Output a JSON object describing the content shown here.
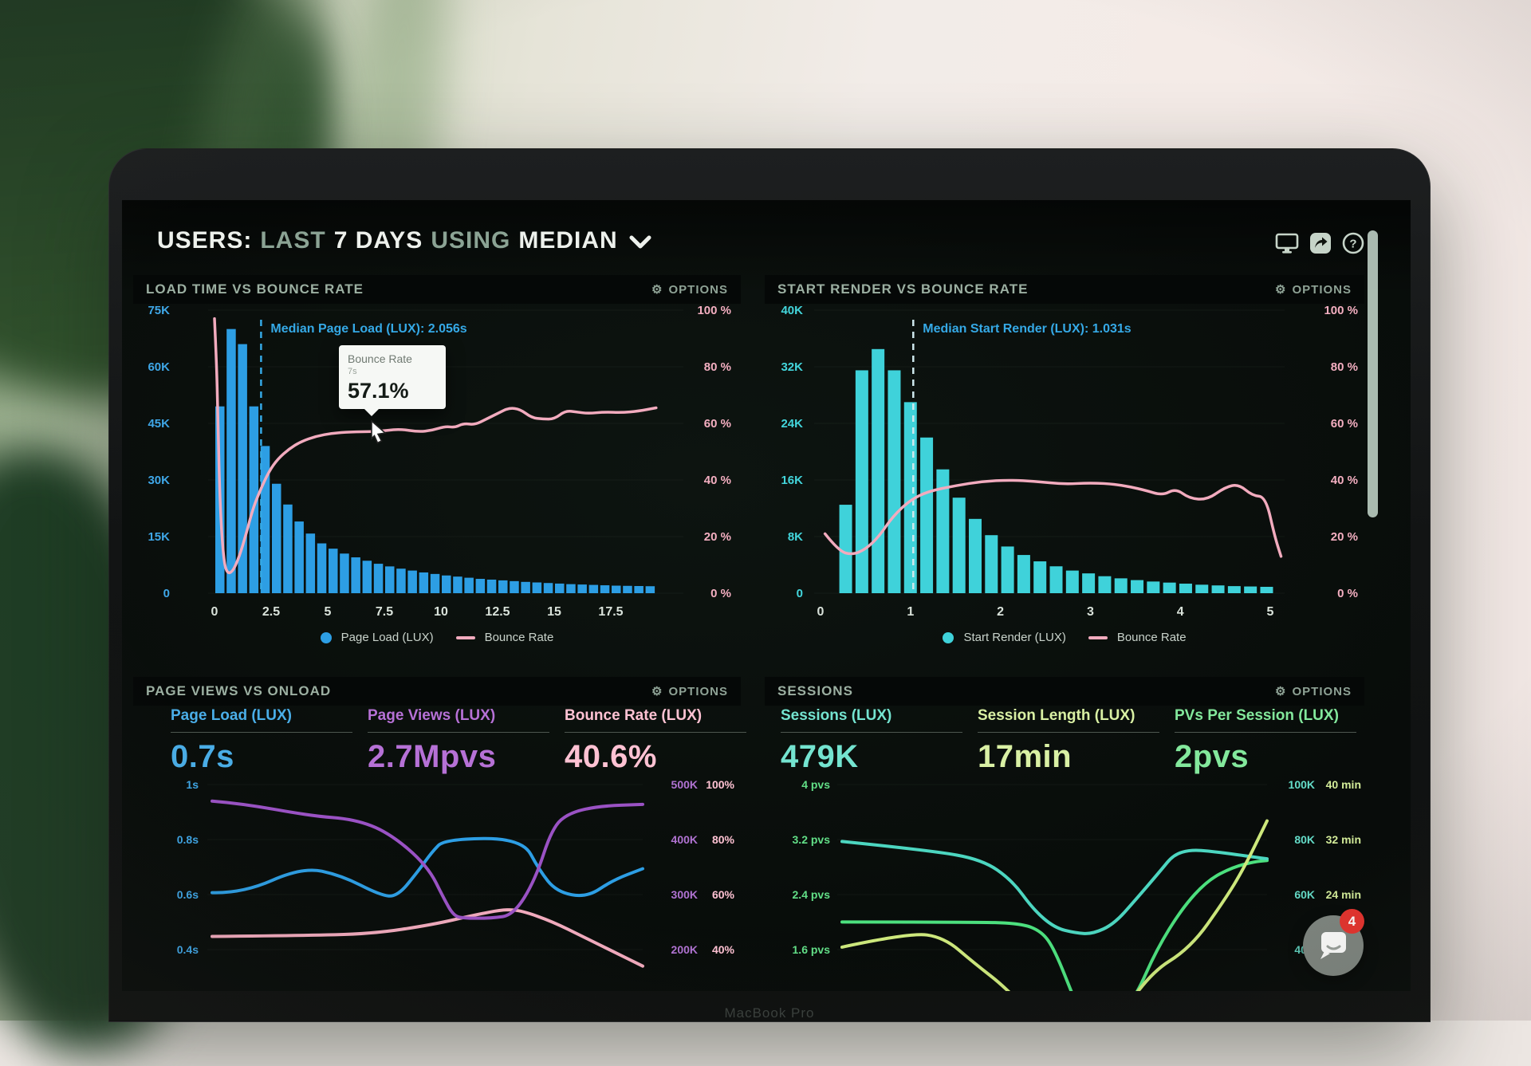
{
  "header": {
    "title_parts": [
      {
        "text": "USERS:",
        "tone": "bright"
      },
      {
        "text": "LAST",
        "tone": "sage"
      },
      {
        "text": "7 DAYS",
        "tone": "bright"
      },
      {
        "text": "USING",
        "tone": "sage"
      },
      {
        "text": "MEDIAN",
        "tone": "bright"
      }
    ],
    "icons": [
      "monitor-icon",
      "share-icon",
      "help-icon"
    ]
  },
  "window": {
    "brand_label": "MacBook Pro"
  },
  "chat": {
    "badge_count": "4"
  },
  "tooltip": {
    "title": "Bounce Rate",
    "sub": "7s",
    "value": "57.1%"
  },
  "colors": {
    "bar_blue": "#2d9ee4",
    "bar_cyan": "#3fd2da",
    "pink": "#f2abbe",
    "median_blue": "#35a9e6",
    "median_dash_white": "#cfe9ee",
    "axis_blue": "#3fa7e8",
    "axis_cyan": "#43d6dc",
    "axis_pink": "#f4afc1",
    "purple": "#9a52c4",
    "line_blue": "#2d9ee4",
    "teal": "#4cd6c0",
    "green": "#4ce07e",
    "lime": "#cde87c",
    "metric_blue": "#4aaee8",
    "metric_purple": "#b671d6",
    "metric_pink": "#ffc2d3",
    "metric_teal": "#74e4d0",
    "metric_lime": "#d9f0a4",
    "metric_green": "#83e89c",
    "axis_purple": "#b073d2",
    "axis_teal": "#64dcc8",
    "axis_lime": "#d4ed9a",
    "axis_green": "#62df87",
    "xtick": "#d9e2da",
    "scrollbar": "#b9cabf"
  },
  "panels": {
    "load_time": {
      "title": "LOAD TIME VS BOUNCE RATE",
      "options": "OPTIONS"
    },
    "start_render": {
      "title": "START RENDER VS BOUNCE RATE",
      "options": "OPTIONS"
    },
    "page_views": {
      "title": "PAGE VIEWS VS ONLOAD",
      "options": "OPTIONS",
      "metrics": [
        {
          "label": "Page Load (LUX)",
          "value": "0.7s",
          "color_key": "metric_blue"
        },
        {
          "label": "Page Views (LUX)",
          "value": "2.7Mpvs",
          "color_key": "metric_purple"
        },
        {
          "label": "Bounce Rate (LUX)",
          "value": "40.6%",
          "color_key": "metric_pink"
        }
      ]
    },
    "sessions": {
      "title": "SESSIONS",
      "options": "OPTIONS",
      "metrics": [
        {
          "label": "Sessions (LUX)",
          "value": "479K",
          "color_key": "metric_teal"
        },
        {
          "label": "Session Length (LUX)",
          "value": "17min",
          "color_key": "metric_lime"
        },
        {
          "label": "PVs Per Session (LUX)",
          "value": "2pvs",
          "color_key": "metric_green"
        }
      ]
    }
  },
  "chart_data": [
    {
      "type": "bar",
      "title": "LOAD TIME VS BOUNCE RATE",
      "left_axis_ticks": [
        "75K",
        "60K",
        "45K",
        "30K",
        "15K",
        "0"
      ],
      "right_axis_ticks": [
        "100 %",
        "80 %",
        "60 %",
        "40 %",
        "20 %",
        "0 %"
      ],
      "x_ticks": [
        "0",
        "2.5",
        "5",
        "7.5",
        "10",
        "12.5",
        "15",
        "17.5"
      ],
      "k_per_row": 15,
      "bars": {
        "name": "Page Load (LUX)",
        "t0": 0,
        "bin": 0.5,
        "values_k": [
          49.5,
          70,
          66,
          49.5,
          39,
          29,
          23.5,
          19,
          15.8,
          13.2,
          11.8,
          10.5,
          9.5,
          8.6,
          7.8,
          7.1,
          6.5,
          6,
          5.5,
          5.1,
          4.7,
          4.4,
          4.1,
          3.8,
          3.6,
          3.4,
          3.2,
          3,
          2.85,
          2.7,
          2.55,
          2.4,
          2.3,
          2.2,
          2.1,
          2,
          1.95,
          1.9,
          1.85
        ]
      },
      "line": {
        "name": "Bounce Rate",
        "points": [
          [
            0,
            97
          ],
          [
            0.1,
            80
          ],
          [
            0.15,
            60
          ],
          [
            0.25,
            30
          ],
          [
            0.4,
            12
          ],
          [
            0.55,
            7
          ],
          [
            0.8,
            7.5
          ],
          [
            1.1,
            13
          ],
          [
            1.4,
            21
          ],
          [
            1.7,
            30
          ],
          [
            2,
            36
          ],
          [
            2.4,
            43
          ],
          [
            2.8,
            47.5
          ],
          [
            3.3,
            51
          ],
          [
            3.8,
            53.5
          ],
          [
            4.5,
            55.5
          ],
          [
            5.2,
            56.5
          ],
          [
            6,
            57
          ],
          [
            7,
            57.1
          ],
          [
            7.6,
            57.5
          ],
          [
            8.2,
            58
          ],
          [
            9,
            57
          ],
          [
            9.6,
            57.5
          ],
          [
            10.2,
            59
          ],
          [
            10.6,
            58.5
          ],
          [
            11,
            60
          ],
          [
            11.5,
            59.5
          ],
          [
            12,
            61.5
          ],
          [
            12.5,
            63.5
          ],
          [
            13,
            65.5
          ],
          [
            13.5,
            65
          ],
          [
            14,
            62
          ],
          [
            14.5,
            61.5
          ],
          [
            15,
            61.5
          ],
          [
            15.5,
            64.5
          ],
          [
            16,
            64
          ],
          [
            16.5,
            63.5
          ],
          [
            17.2,
            64
          ],
          [
            18,
            63.8
          ],
          [
            18.7,
            64.3
          ],
          [
            19.5,
            65.5
          ]
        ]
      },
      "median": {
        "label": "Median Page Load (LUX): 2.056s",
        "seconds": 2.056
      },
      "legend": [
        {
          "label": "Page Load (LUX)"
        },
        {
          "label": "Bounce Rate"
        }
      ],
      "tooltip_point": {
        "at_seconds": 7,
        "value_pct": 57.1
      }
    },
    {
      "type": "bar",
      "title": "START RENDER VS BOUNCE RATE",
      "left_axis_ticks": [
        "40K",
        "32K",
        "24K",
        "16K",
        "8K",
        "0"
      ],
      "right_axis_ticks": [
        "100 %",
        "80 %",
        "60 %",
        "40 %",
        "20 %",
        "0 %"
      ],
      "x_ticks": [
        "0",
        "1",
        "2",
        "3",
        "4",
        "5"
      ],
      "k_per_row": 8,
      "bars": {
        "name": "Start Render (LUX)",
        "t0": 0.2,
        "bin": 0.18,
        "values_k": [
          12.5,
          31.5,
          34.5,
          31.5,
          27,
          22,
          17.5,
          13.5,
          10.5,
          8.2,
          6.6,
          5.4,
          4.5,
          3.8,
          3.2,
          2.8,
          2.4,
          2.1,
          1.85,
          1.65,
          1.5,
          1.35,
          1.2,
          1.1,
          1,
          0.95,
          0.9
        ]
      },
      "line": {
        "name": "Bounce Rate",
        "points": [
          [
            0.05,
            21
          ],
          [
            0.2,
            15
          ],
          [
            0.35,
            13.5
          ],
          [
            0.5,
            15.5
          ],
          [
            0.65,
            20
          ],
          [
            0.8,
            27
          ],
          [
            1,
            33
          ],
          [
            1.2,
            36
          ],
          [
            1.5,
            38
          ],
          [
            1.8,
            39.5
          ],
          [
            2.1,
            40
          ],
          [
            2.4,
            39.5
          ],
          [
            2.7,
            38.5
          ],
          [
            3,
            39
          ],
          [
            3.3,
            38.5
          ],
          [
            3.6,
            36.5
          ],
          [
            3.8,
            34.5
          ],
          [
            3.95,
            37
          ],
          [
            4.1,
            33.5
          ],
          [
            4.3,
            33
          ],
          [
            4.5,
            37.5
          ],
          [
            4.65,
            38.5
          ],
          [
            4.8,
            34.5
          ],
          [
            4.95,
            34
          ],
          [
            5.05,
            20
          ],
          [
            5.12,
            13
          ]
        ]
      },
      "median": {
        "label": "Median Start Render (LUX): 1.031s",
        "seconds": 1.031
      },
      "legend": [
        {
          "label": "Start Render (LUX)"
        },
        {
          "label": "Bounce Rate"
        }
      ]
    },
    {
      "type": "line",
      "title": "PAGE VIEWS VS ONLOAD",
      "rows_left": [
        "1s",
        "0.8s",
        "0.6s",
        "0.4s"
      ],
      "rows_right": [
        [
          "500K",
          "100%"
        ],
        [
          "400K",
          "80%"
        ],
        [
          "300K",
          "60%"
        ],
        [
          "200K",
          "40%"
        ]
      ],
      "series": [
        {
          "name": "Bounce Rate (LUX)",
          "color_key": "pink",
          "points": [
            [
              0,
              0.92
            ],
            [
              0.2,
              0.915
            ],
            [
              0.37,
              0.905
            ],
            [
              0.51,
              0.85
            ],
            [
              0.61,
              0.79
            ],
            [
              0.68,
              0.755
            ],
            [
              0.72,
              0.765
            ],
            [
              0.79,
              0.83
            ],
            [
              0.86,
              0.92
            ],
            [
              0.93,
              1.01
            ],
            [
              1,
              1.1
            ]
          ]
        },
        {
          "name": "Page Load (LUX)",
          "color_key": "line_blue",
          "points": [
            [
              0,
              0.655
            ],
            [
              0.07,
              0.66
            ],
            [
              0.21,
              0.5
            ],
            [
              0.3,
              0.55
            ],
            [
              0.39,
              0.67
            ],
            [
              0.43,
              0.68
            ],
            [
              0.48,
              0.52
            ],
            [
              0.51,
              0.41
            ],
            [
              0.54,
              0.33
            ],
            [
              0.72,
              0.325
            ],
            [
              0.76,
              0.52
            ],
            [
              0.8,
              0.65
            ],
            [
              0.87,
              0.685
            ],
            [
              0.93,
              0.58
            ],
            [
              1,
              0.51
            ]
          ]
        },
        {
          "name": "Page Views (LUX)",
          "color_key": "purple",
          "points": [
            [
              0,
              0.1
            ],
            [
              0.07,
              0.115
            ],
            [
              0.23,
              0.19
            ],
            [
              0.33,
              0.21
            ],
            [
              0.41,
              0.29
            ],
            [
              0.5,
              0.49
            ],
            [
              0.54,
              0.7
            ],
            [
              0.56,
              0.79
            ],
            [
              0.58,
              0.81
            ],
            [
              0.65,
              0.81
            ],
            [
              0.7,
              0.79
            ],
            [
              0.75,
              0.58
            ],
            [
              0.79,
              0.26
            ],
            [
              0.83,
              0.17
            ],
            [
              0.9,
              0.13
            ],
            [
              1,
              0.12
            ]
          ]
        }
      ]
    },
    {
      "type": "line",
      "title": "SESSIONS",
      "rows_left": [
        "4 pvs",
        "3.2 pvs",
        "2.4 pvs",
        "1.6 pvs"
      ],
      "rows_right": [
        [
          "100K",
          "40 min"
        ],
        [
          "80K",
          "32 min"
        ],
        [
          "60K",
          "24 min"
        ],
        [
          "40K",
          ""
        ]
      ],
      "series": [
        {
          "name": "PVs Per Session (LUX)",
          "color_key": "green",
          "points": [
            [
              0,
              0.833
            ],
            [
              0.3,
              0.833
            ],
            [
              0.42,
              0.84
            ],
            [
              0.47,
              0.89
            ],
            [
              0.5,
              1
            ],
            [
              0.545,
              1.29
            ],
            [
              0.57,
              1.45
            ],
            [
              0.62,
              1.5
            ],
            [
              0.66,
              1.35
            ],
            [
              0.69,
              1.29
            ],
            [
              0.74,
              1
            ],
            [
              0.8,
              0.75
            ],
            [
              0.86,
              0.58
            ],
            [
              0.92,
              0.5
            ],
            [
              0.97,
              0.468
            ],
            [
              1,
              0.46
            ]
          ]
        },
        {
          "name": "Sessions (LUX)",
          "color_key": "teal",
          "points": [
            [
              0,
              0.345
            ],
            [
              0.21,
              0.4
            ],
            [
              0.33,
              0.455
            ],
            [
              0.4,
              0.58
            ],
            [
              0.45,
              0.757
            ],
            [
              0.5,
              0.868
            ],
            [
              0.55,
              0.9
            ],
            [
              0.59,
              0.905
            ],
            [
              0.64,
              0.845
            ],
            [
              0.69,
              0.7
            ],
            [
              0.75,
              0.52
            ],
            [
              0.78,
              0.425
            ],
            [
              0.82,
              0.395
            ],
            [
              0.87,
              0.405
            ],
            [
              0.93,
              0.425
            ],
            [
              0.97,
              0.44
            ],
            [
              1,
              0.45
            ]
          ]
        },
        {
          "name": "Session Length (LUX)",
          "color_key": "lime",
          "points": [
            [
              0,
              0.985
            ],
            [
              0.16,
              0.897
            ],
            [
              0.24,
              0.926
            ],
            [
              0.31,
              1.08
            ],
            [
              0.39,
              1.24
            ],
            [
              0.5,
              1.55
            ],
            [
              0.62,
              1.55
            ],
            [
              0.72,
              1.15
            ],
            [
              0.82,
              0.99
            ],
            [
              0.9,
              0.7
            ],
            [
              0.945,
              0.51
            ],
            [
              1,
              0.22
            ]
          ]
        }
      ]
    }
  ]
}
